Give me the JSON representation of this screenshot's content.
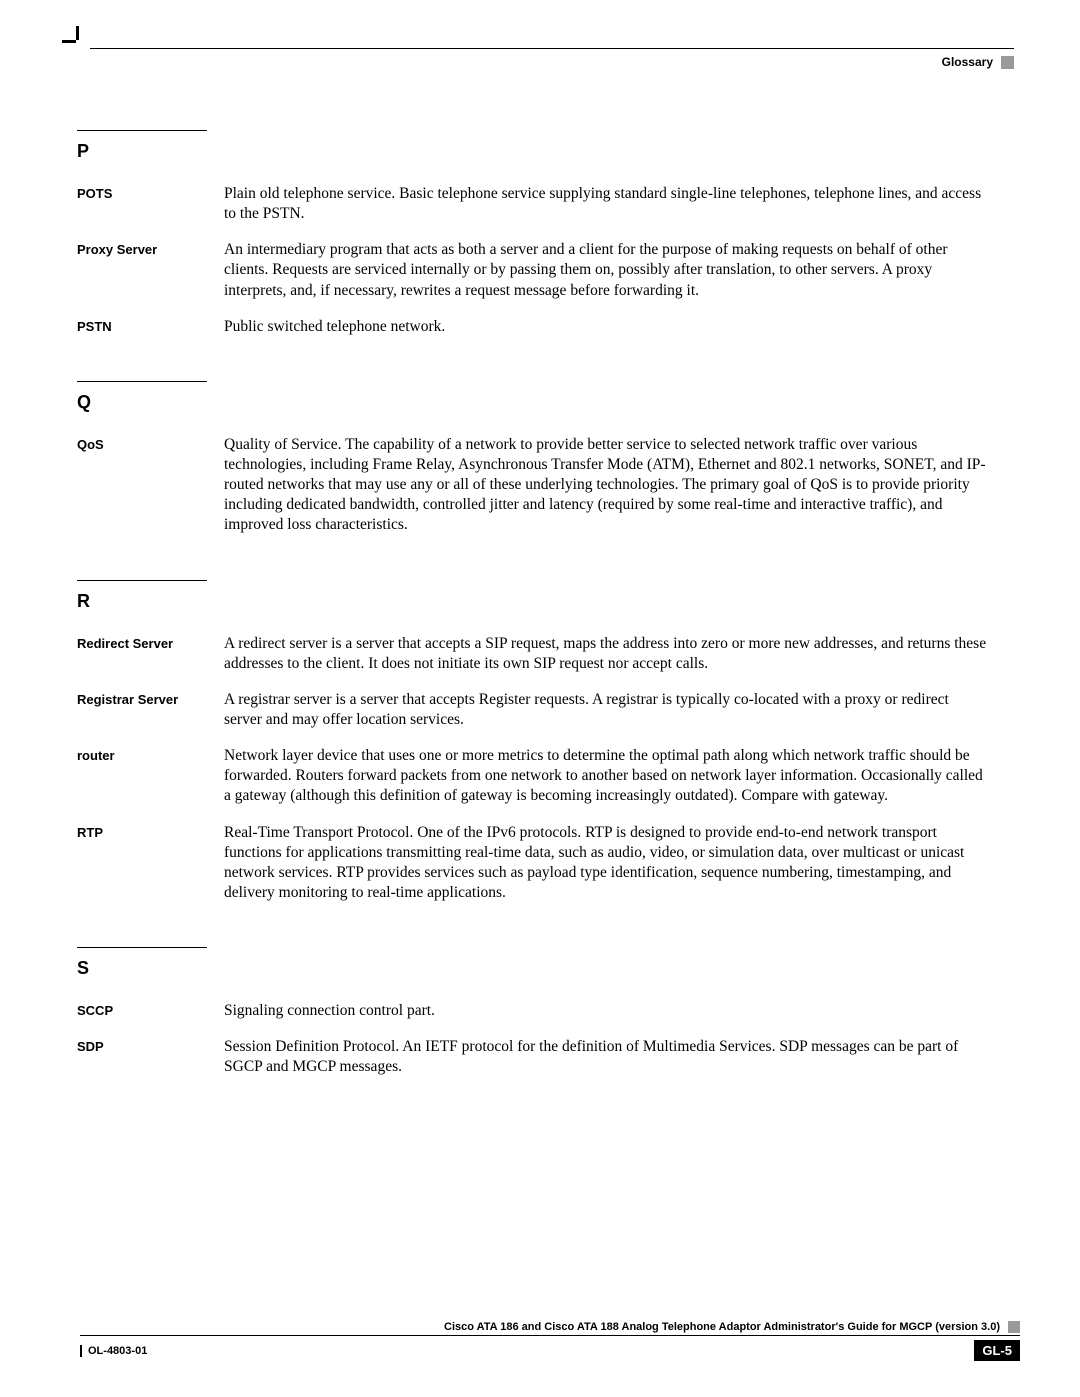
{
  "header": {
    "label": "Glossary"
  },
  "sections": [
    {
      "letter": "P",
      "entries": [
        {
          "term": "POTS",
          "definition": "Plain old telephone service. Basic telephone service supplying standard single-line telephones, telephone lines, and access to the PSTN."
        },
        {
          "term": "Proxy Server",
          "definition": "An intermediary program that acts as both a server and a client for the purpose of making requests on behalf of other clients. Requests are serviced internally or by passing them on, possibly after translation, to other servers. A proxy interprets, and, if necessary, rewrites a request message before forwarding it."
        },
        {
          "term": "PSTN",
          "definition": "Public switched telephone network."
        }
      ]
    },
    {
      "letter": "Q",
      "entries": [
        {
          "term": "QoS",
          "definition": "Quality of Service. The capability of a network to provide better service to selected network traffic over various technologies, including Frame Relay, Asynchronous Transfer Mode (ATM), Ethernet and 802.1 networks, SONET, and IP-routed networks that may use any or all of these underlying technologies. The primary goal of QoS is to provide priority including dedicated bandwidth, controlled jitter and latency (required by some real-time and interactive traffic), and improved loss characteristics."
        }
      ]
    },
    {
      "letter": "R",
      "entries": [
        {
          "term": "Redirect Server",
          "definition": "A redirect server is a server that accepts a SIP request, maps the address into zero or more new addresses, and returns these addresses to the client. It does not initiate its own SIP request nor accept calls."
        },
        {
          "term": "Registrar Server",
          "definition": "A registrar server is a server that accepts Register requests. A registrar is typically co-located with a proxy or redirect server and may offer location services."
        },
        {
          "term": "router",
          "definition": "Network layer device that uses one or more metrics to determine the optimal path along which network traffic should be forwarded. Routers forward packets from one network to another based on network layer information. Occasionally called a gateway (although this definition of gateway is becoming increasingly outdated). Compare with gateway."
        },
        {
          "term": "RTP",
          "definition": "Real-Time Transport Protocol. One of the IPv6 protocols. RTP is designed to provide end-to-end network transport functions for applications transmitting real-time data, such as audio, video, or simulation data, over multicast or unicast network services. RTP provides services such as payload type identification, sequence numbering, timestamping, and delivery monitoring to real-time applications."
        }
      ]
    },
    {
      "letter": "S",
      "entries": [
        {
          "term": "SCCP",
          "definition": "Signaling connection control part."
        },
        {
          "term": "SDP",
          "definition": "Session Definition Protocol. An IETF protocol for the definition of Multimedia Services. SDP messages can be part of SGCP and MGCP messages."
        }
      ]
    }
  ],
  "footer": {
    "title": "Cisco ATA 186 and Cisco ATA 188 Analog Telephone Adaptor Administrator's Guide for MGCP (version 3.0)",
    "docnum": "OL-4803-01",
    "pagenum": "GL-5"
  }
}
